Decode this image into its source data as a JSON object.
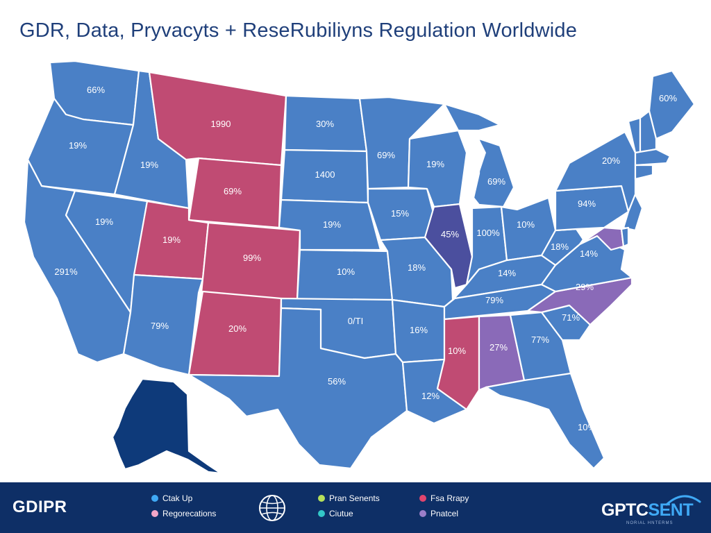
{
  "title": "GDR, Data, Pryvacyts + ReseRubiliyns Regulation Worldwide",
  "colors": {
    "blue": "#4a80c6",
    "pink": "#c04b73",
    "indigo": "#4b4f9e",
    "purple": "#8a6ab8",
    "navy": "#0e3a7a",
    "footer": "#0e2f66"
  },
  "states": [
    {
      "id": "WA",
      "label": "66%",
      "color": "blue"
    },
    {
      "id": "OR",
      "label": "19%",
      "color": "blue"
    },
    {
      "id": "CA",
      "label": "291%",
      "color": "blue"
    },
    {
      "id": "ID",
      "label": "19%",
      "color": "blue"
    },
    {
      "id": "NV",
      "label": "19%",
      "color": "blue"
    },
    {
      "id": "MT",
      "label": "1990",
      "color": "pink"
    },
    {
      "id": "WY",
      "label": "69%",
      "color": "pink"
    },
    {
      "id": "UT",
      "label": "19%",
      "color": "pink"
    },
    {
      "id": "AZ",
      "label": "79%",
      "color": "blue"
    },
    {
      "id": "CO",
      "label": "99%",
      "color": "pink"
    },
    {
      "id": "NM",
      "label": "20%",
      "color": "pink"
    },
    {
      "id": "ND",
      "label": "30%",
      "color": "blue"
    },
    {
      "id": "SD",
      "label": "1400",
      "color": "blue"
    },
    {
      "id": "NE",
      "label": "19%",
      "color": "blue"
    },
    {
      "id": "KS",
      "label": "10%",
      "color": "blue"
    },
    {
      "id": "OK",
      "label": "0/TI",
      "color": "blue"
    },
    {
      "id": "TX",
      "label": "56%",
      "color": "blue"
    },
    {
      "id": "MN",
      "label": "69%",
      "color": "blue"
    },
    {
      "id": "IA",
      "label": "15%",
      "color": "blue"
    },
    {
      "id": "MO",
      "label": "18%",
      "color": "blue"
    },
    {
      "id": "AR",
      "label": "16%",
      "color": "blue"
    },
    {
      "id": "LA",
      "label": "12%",
      "color": "blue"
    },
    {
      "id": "WI",
      "label": "19%",
      "color": "blue"
    },
    {
      "id": "IL",
      "label": "45%",
      "color": "indigo"
    },
    {
      "id": "MI",
      "label": "69%",
      "color": "blue"
    },
    {
      "id": "IN",
      "label": "100%",
      "color": "blue"
    },
    {
      "id": "OH",
      "label": "10%",
      "color": "blue"
    },
    {
      "id": "KY",
      "label": "14%",
      "color": "blue"
    },
    {
      "id": "TN",
      "label": "79%",
      "color": "blue"
    },
    {
      "id": "MS",
      "label": "10%",
      "color": "pink"
    },
    {
      "id": "AL",
      "label": "27%",
      "color": "purple"
    },
    {
      "id": "GA",
      "label": "77%",
      "color": "blue"
    },
    {
      "id": "FL",
      "label": "10%",
      "color": "blue"
    },
    {
      "id": "SC",
      "label": "71%",
      "color": "blue"
    },
    {
      "id": "NC",
      "label": "29%",
      "color": "purple"
    },
    {
      "id": "VA",
      "label": "14%",
      "color": "blue"
    },
    {
      "id": "WV",
      "label": "18%",
      "color": "blue"
    },
    {
      "id": "PA",
      "label": "94%",
      "color": "blue"
    },
    {
      "id": "NY",
      "label": "20%",
      "color": "blue"
    },
    {
      "id": "ME",
      "label": "60%",
      "color": "blue"
    },
    {
      "id": "VT",
      "label": "",
      "color": "blue"
    },
    {
      "id": "NH",
      "label": "",
      "color": "blue"
    },
    {
      "id": "MA",
      "label": "",
      "color": "blue"
    },
    {
      "id": "CT",
      "label": "",
      "color": "blue"
    },
    {
      "id": "NJ",
      "label": "",
      "color": "blue"
    },
    {
      "id": "MD",
      "label": "",
      "color": "purple"
    },
    {
      "id": "DE",
      "label": "",
      "color": "blue"
    },
    {
      "id": "AK",
      "label": "",
      "color": "navy"
    }
  ],
  "footer": {
    "title": "GDIPR",
    "legend": [
      {
        "label": "Ctak Up",
        "color": "#3fa9f5"
      },
      {
        "label": "Regorecations",
        "color": "#f2a6c8"
      },
      {
        "label": "Pran Senents",
        "color": "#b6e05a"
      },
      {
        "label": "Ciutue",
        "color": "#33c7c7"
      },
      {
        "label": "Fsa Rrapy",
        "color": "#e0456e"
      },
      {
        "label": "Pnatcel",
        "color": "#9b7ec8"
      }
    ],
    "globe_icon": "globe-icon",
    "brand_main": "GPTC",
    "brand_accent": "SENT",
    "brand_sub": "NORIAL HNTERMS"
  }
}
